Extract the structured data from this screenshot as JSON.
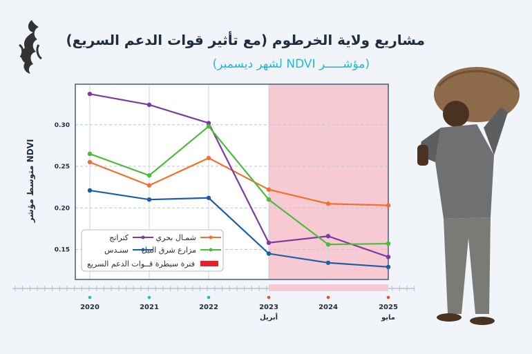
{
  "header": {
    "title": "مشاريع ولاية الخرطوم (مع تأثير قوات الدعم السريع)",
    "subtitle": "(مؤشـــــر NDVI لشهر ديسمبر)",
    "logo_icon": "aljazeera-logo"
  },
  "chart_data": {
    "type": "line",
    "title": "مشاريع ولاية الخرطوم (مع تأثير قوات الدعم السريع)",
    "subtitle": "(مؤشـــــر NDVI لشهر ديسمبر)",
    "ylabel": "متوسط مؤشر NDVI",
    "xlabel": "",
    "x": [
      "2020",
      "2021",
      "2022",
      "2023",
      "2024",
      "2025"
    ],
    "x_sublabels": [
      "",
      "",
      "",
      "أبريل",
      "",
      "مايو"
    ],
    "ylim": [
      0.12,
      0.35
    ],
    "yticks": [
      "0.15",
      "0.20",
      "0.25",
      "0.30"
    ],
    "grid": "horizontal",
    "legend_position": "lower-left",
    "series": [
      {
        "name": "شمـال بحري",
        "color": "#f07030",
        "values": [
          0.255,
          0.227,
          0.26,
          0.222,
          0.205,
          0.203
        ]
      },
      {
        "name": "كتراتج",
        "color": "#7b3a9e",
        "values": [
          0.337,
          0.324,
          0.302,
          0.158,
          0.166,
          0.141
        ]
      },
      {
        "name": "مزارع شرق النيل",
        "color": "#4cbb3a",
        "values": [
          0.265,
          0.239,
          0.298,
          0.21,
          0.156,
          0.157
        ]
      },
      {
        "name": "سنـدس",
        "color": "#1b5ea6",
        "values": [
          0.221,
          0.21,
          0.212,
          0.145,
          0.134,
          0.129
        ]
      }
    ],
    "shaded_region": {
      "label": "فترة سيطرة قــوات الدعم السريع",
      "from": "2023",
      "to": "2025",
      "color": "#f7c9d2"
    }
  }
}
